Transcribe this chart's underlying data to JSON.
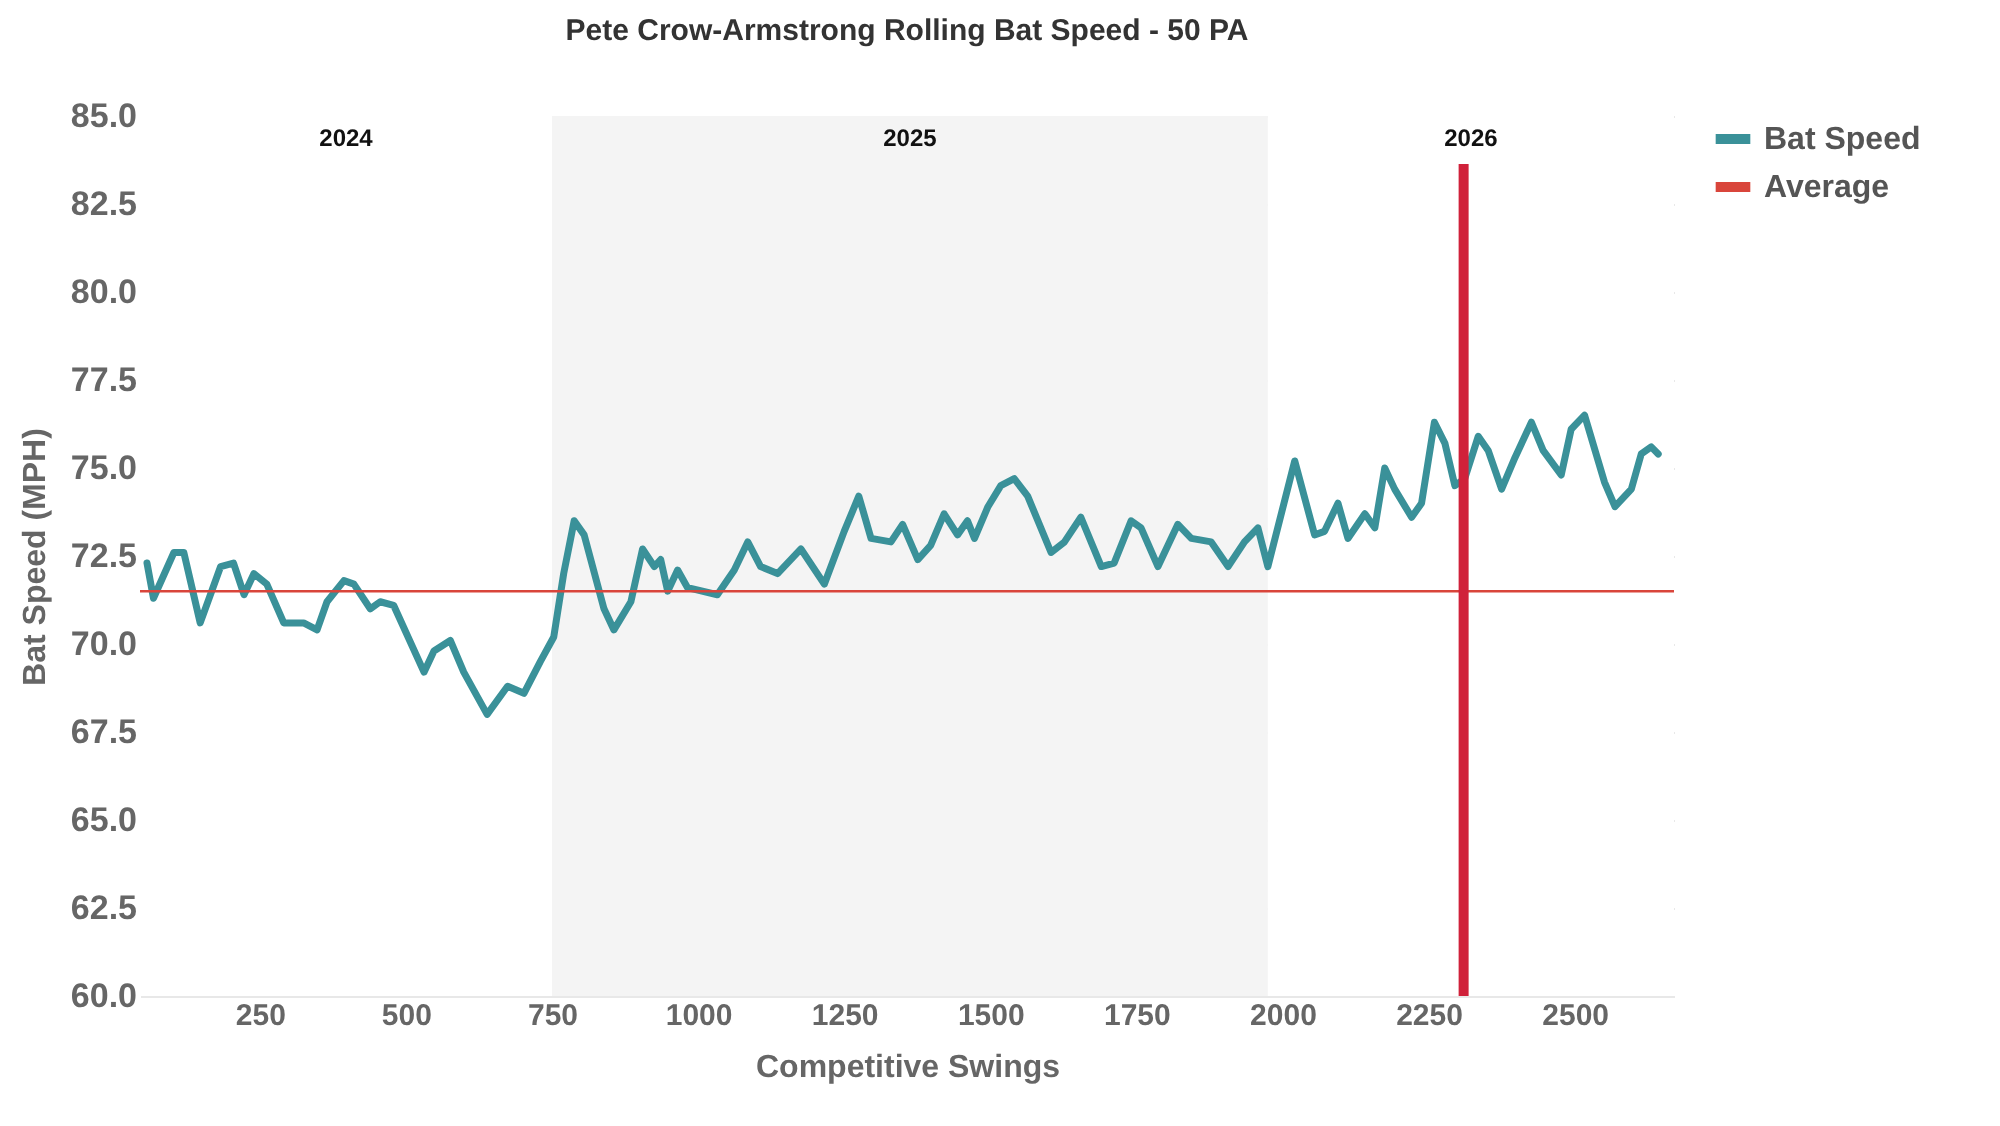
{
  "chart_data": {
    "type": "line",
    "title": "Pete Crow-Armstrong Rolling Bat Speed - 50 PA",
    "xlabel": "Competitive Swings",
    "ylabel": "Bat Speed (MPH)",
    "series": [
      {
        "name": "Bat Speed",
        "color": "#3a9199",
        "x": [
          57,
          68,
          103,
          120,
          148,
          183,
          205,
          223,
          240,
          262,
          291,
          325,
          348,
          365,
          394,
          411,
          439,
          456,
          479,
          531,
          548,
          576,
          599,
          639,
          674,
          702,
          730,
          753,
          770,
          788,
          805,
          839,
          856,
          885,
          905,
          925,
          936,
          948,
          965,
          982,
          1033,
          1062,
          1085,
          1107,
          1136,
          1176,
          1216,
          1250,
          1275,
          1296,
          1330,
          1350,
          1376,
          1398,
          1421,
          1444,
          1461,
          1473,
          1496,
          1518,
          1541,
          1564,
          1604,
          1627,
          1655,
          1690,
          1712,
          1741,
          1758,
          1787,
          1821,
          1844,
          1878,
          1907,
          1935,
          1958,
          1975,
          2021,
          2055,
          2072,
          2095,
          2112,
          2141,
          2158,
          2175,
          2192,
          2221,
          2238,
          2260,
          2278,
          2295,
          2312,
          2335,
          2352,
          2375,
          2398,
          2426,
          2446,
          2477,
          2494,
          2517,
          2551,
          2569,
          2597,
          2614,
          2631,
          2643
        ],
        "values": [
          72.3,
          71.3,
          72.6,
          72.6,
          70.6,
          72.2,
          72.3,
          71.4,
          72.0,
          71.7,
          70.6,
          70.6,
          70.4,
          71.2,
          71.8,
          71.7,
          71.0,
          71.2,
          71.1,
          69.2,
          69.8,
          70.1,
          69.2,
          68.0,
          68.8,
          68.6,
          69.5,
          70.2,
          72.0,
          73.5,
          73.1,
          71.0,
          70.4,
          71.2,
          72.7,
          72.2,
          72.4,
          71.5,
          72.1,
          71.6,
          71.4,
          72.1,
          72.9,
          72.2,
          72.0,
          72.7,
          71.7,
          73.2,
          74.2,
          73.0,
          72.9,
          73.4,
          72.4,
          72.8,
          73.7,
          73.1,
          73.5,
          73.0,
          73.9,
          74.5,
          74.7,
          74.2,
          72.6,
          72.9,
          73.6,
          72.2,
          72.3,
          73.5,
          73.3,
          72.2,
          73.4,
          73.0,
          72.9,
          72.2,
          72.9,
          73.3,
          72.2,
          75.2,
          73.1,
          73.2,
          74.0,
          73.0,
          73.7,
          73.3,
          75.0,
          74.4,
          73.6,
          74.0,
          76.3,
          75.7,
          74.5,
          74.7,
          75.9,
          75.5,
          74.4,
          75.3,
          76.3,
          75.5,
          74.8,
          76.1,
          76.5,
          74.6,
          73.9,
          74.4,
          75.4,
          75.6,
          75.4
        ]
      }
    ],
    "xlim": [
      45,
      2670
    ],
    "xticks": [
      250,
      500,
      750,
      1000,
      1250,
      1500,
      1750,
      2000,
      2250,
      2500
    ],
    "ylim": [
      60,
      85
    ],
    "yticks": [
      {
        "value": 60,
        "label": "60.0"
      },
      62.5,
      {
        "value": 65,
        "label": "65.0"
      },
      67.5,
      {
        "value": 70,
        "label": "70.0"
      },
      72.5,
      {
        "value": 75,
        "label": "75.0"
      },
      77.5,
      {
        "value": 80,
        "label": "80.0"
      },
      82.5,
      {
        "value": 85,
        "label": "85.0"
      }
    ],
    "bands": [
      {
        "axis": "x",
        "from": 45,
        "to": 750,
        "label": "2024",
        "color": "#ffffff"
      },
      {
        "axis": "x",
        "from": 750,
        "to": 1975,
        "label": "2025",
        "color": "#f4f4f4"
      },
      {
        "axis": "x",
        "from": 1975,
        "to": 2670,
        "label": "2026",
        "color": "#ffffff"
      }
    ],
    "ref_lines": [
      {
        "axis": "y",
        "value": 71.5,
        "label": "Average",
        "color": "#d9453b"
      },
      {
        "axis": "x",
        "value": 2310,
        "color": "#d0213a"
      }
    ],
    "grid": "y",
    "legend": "right"
  }
}
